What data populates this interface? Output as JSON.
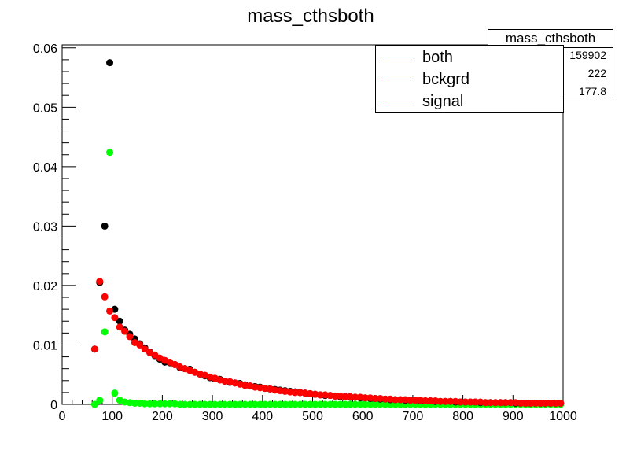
{
  "chart_data": {
    "type": "scatter",
    "title": "mass_cthsboth",
    "xlabel": "",
    "ylabel": "",
    "xlim": [
      0,
      1000
    ],
    "ylim": [
      0,
      0.0605
    ],
    "x_ticks": [
      "0",
      "100",
      "200",
      "300",
      "400",
      "500",
      "600",
      "700",
      "800",
      "900",
      "1000"
    ],
    "y_ticks": [
      "0",
      "0.01",
      "0.02",
      "0.03",
      "0.04",
      "0.05",
      "0.06"
    ],
    "legend_position": "top-right",
    "series": [
      {
        "name": "both",
        "color": "#000000",
        "points": [
          [
            65,
            0.0093
          ],
          [
            75,
            0.0205
          ],
          [
            85,
            0.03
          ],
          [
            95,
            0.0575
          ],
          [
            105,
            0.016
          ],
          [
            115,
            0.014
          ],
          [
            125,
            0.0125
          ],
          [
            135,
            0.0118
          ],
          [
            145,
            0.011
          ],
          [
            155,
            0.0102
          ],
          [
            165,
            0.0095
          ],
          [
            175,
            0.0088
          ],
          [
            185,
            0.0082
          ],
          [
            195,
            0.0076
          ],
          [
            205,
            0.0071
          ],
          [
            215,
            0.007
          ],
          [
            225,
            0.0067
          ],
          [
            235,
            0.0062
          ],
          [
            245,
            0.006
          ],
          [
            255,
            0.0059
          ],
          [
            265,
            0.0054
          ],
          [
            275,
            0.0051
          ],
          [
            285,
            0.0048
          ],
          [
            295,
            0.0045
          ],
          [
            305,
            0.0043
          ],
          [
            315,
            0.0042
          ],
          [
            325,
            0.0039
          ],
          [
            335,
            0.0037
          ],
          [
            345,
            0.0036
          ],
          [
            355,
            0.0035
          ],
          [
            365,
            0.0033
          ],
          [
            375,
            0.0031
          ],
          [
            385,
            0.003
          ],
          [
            395,
            0.0029
          ],
          [
            405,
            0.0027
          ],
          [
            415,
            0.0026
          ],
          [
            425,
            0.0025
          ],
          [
            435,
            0.0024
          ],
          [
            445,
            0.0023
          ],
          [
            455,
            0.0022
          ],
          [
            465,
            0.0021
          ],
          [
            475,
            0.002
          ],
          [
            485,
            0.0019
          ],
          [
            495,
            0.0018
          ],
          [
            505,
            0.0017
          ],
          [
            515,
            0.0016
          ],
          [
            525,
            0.0015
          ],
          [
            535,
            0.0015
          ],
          [
            545,
            0.0014
          ],
          [
            555,
            0.0013
          ],
          [
            565,
            0.0013
          ],
          [
            575,
            0.0012
          ],
          [
            585,
            0.0012
          ],
          [
            595,
            0.0011
          ],
          [
            605,
            0.0011
          ],
          [
            615,
            0.001
          ],
          [
            625,
            0.001
          ],
          [
            635,
            0.0009
          ],
          [
            645,
            0.0009
          ],
          [
            655,
            0.0008
          ],
          [
            665,
            0.0008
          ],
          [
            675,
            0.0008
          ],
          [
            685,
            0.0007
          ],
          [
            695,
            0.0007
          ],
          [
            705,
            0.0007
          ],
          [
            715,
            0.0006
          ],
          [
            725,
            0.0006
          ],
          [
            735,
            0.0006
          ],
          [
            745,
            0.0005
          ],
          [
            755,
            0.0005
          ],
          [
            765,
            0.0005
          ],
          [
            775,
            0.0005
          ],
          [
            785,
            0.0004
          ],
          [
            795,
            0.0004
          ],
          [
            805,
            0.0004
          ],
          [
            815,
            0.0004
          ],
          [
            825,
            0.0004
          ],
          [
            835,
            0.0003
          ],
          [
            845,
            0.0003
          ],
          [
            855,
            0.0003
          ],
          [
            865,
            0.0003
          ],
          [
            875,
            0.0003
          ],
          [
            885,
            0.0003
          ],
          [
            895,
            0.0003
          ],
          [
            905,
            0.0002
          ],
          [
            915,
            0.0002
          ],
          [
            925,
            0.0002
          ],
          [
            935,
            0.0002
          ],
          [
            945,
            0.0002
          ],
          [
            955,
            0.0002
          ],
          [
            965,
            0.0002
          ],
          [
            975,
            0.0002
          ],
          [
            985,
            0.0002
          ],
          [
            995,
            0.0002
          ]
        ]
      },
      {
        "name": "bckgrd",
        "color": "#ff0000",
        "points": [
          [
            65,
            0.0093
          ],
          [
            75,
            0.0207
          ],
          [
            85,
            0.0181
          ],
          [
            95,
            0.0157
          ],
          [
            105,
            0.0146
          ],
          [
            115,
            0.013
          ],
          [
            125,
            0.0123
          ],
          [
            135,
            0.0114
          ],
          [
            145,
            0.0104
          ],
          [
            155,
            0.01
          ],
          [
            165,
            0.0093
          ],
          [
            175,
            0.0087
          ],
          [
            185,
            0.0083
          ],
          [
            195,
            0.0078
          ],
          [
            205,
            0.0074
          ],
          [
            215,
            0.0071
          ],
          [
            225,
            0.0067
          ],
          [
            235,
            0.0063
          ],
          [
            245,
            0.006
          ],
          [
            255,
            0.0057
          ],
          [
            265,
            0.0054
          ],
          [
            275,
            0.0051
          ],
          [
            285,
            0.0049
          ],
          [
            295,
            0.0046
          ],
          [
            305,
            0.0044
          ],
          [
            315,
            0.0041
          ],
          [
            325,
            0.0039
          ],
          [
            335,
            0.0038
          ],
          [
            345,
            0.0036
          ],
          [
            355,
            0.0034
          ],
          [
            365,
            0.0032
          ],
          [
            375,
            0.0031
          ],
          [
            385,
            0.0029
          ],
          [
            395,
            0.0028
          ],
          [
            405,
            0.0027
          ],
          [
            415,
            0.0026
          ],
          [
            425,
            0.0024
          ],
          [
            435,
            0.0023
          ],
          [
            445,
            0.0022
          ],
          [
            455,
            0.0021
          ],
          [
            465,
            0.002
          ],
          [
            475,
            0.002
          ],
          [
            485,
            0.0019
          ],
          [
            495,
            0.0018
          ],
          [
            505,
            0.0017
          ],
          [
            515,
            0.0016
          ],
          [
            525,
            0.0016
          ],
          [
            535,
            0.0015
          ],
          [
            545,
            0.0014
          ],
          [
            555,
            0.0014
          ],
          [
            565,
            0.0013
          ],
          [
            575,
            0.0013
          ],
          [
            585,
            0.0012
          ],
          [
            595,
            0.0012
          ],
          [
            605,
            0.0011
          ],
          [
            615,
            0.0011
          ],
          [
            625,
            0.001
          ],
          [
            635,
            0.001
          ],
          [
            645,
            0.0009
          ],
          [
            655,
            0.0009
          ],
          [
            665,
            0.0008
          ],
          [
            675,
            0.0008
          ],
          [
            685,
            0.0008
          ],
          [
            695,
            0.0007
          ],
          [
            705,
            0.0007
          ],
          [
            715,
            0.0007
          ],
          [
            725,
            0.0006
          ],
          [
            735,
            0.0006
          ],
          [
            745,
            0.0006
          ],
          [
            755,
            0.0005
          ],
          [
            765,
            0.0005
          ],
          [
            775,
            0.0005
          ],
          [
            785,
            0.0005
          ],
          [
            795,
            0.0004
          ],
          [
            805,
            0.0004
          ],
          [
            815,
            0.0004
          ],
          [
            825,
            0.0004
          ],
          [
            835,
            0.0004
          ],
          [
            845,
            0.0003
          ],
          [
            855,
            0.0003
          ],
          [
            865,
            0.0003
          ],
          [
            875,
            0.0003
          ],
          [
            885,
            0.0003
          ],
          [
            895,
            0.0003
          ],
          [
            905,
            0.0003
          ],
          [
            915,
            0.0002
          ],
          [
            925,
            0.0002
          ],
          [
            935,
            0.0002
          ],
          [
            945,
            0.0002
          ],
          [
            955,
            0.0002
          ],
          [
            965,
            0.0002
          ],
          [
            975,
            0.0002
          ],
          [
            985,
            0.0002
          ],
          [
            995,
            0.0002
          ]
        ]
      },
      {
        "name": "signal",
        "color": "#00ff00",
        "points": [
          [
            65,
            0.0
          ],
          [
            75,
            0.0007
          ],
          [
            85,
            0.0122
          ],
          [
            95,
            0.0424
          ],
          [
            105,
            0.0019
          ],
          [
            115,
            0.0007
          ],
          [
            125,
            0.0004
          ],
          [
            135,
            0.0003
          ],
          [
            145,
            0.0002
          ],
          [
            155,
            0.0002
          ],
          [
            165,
            0.0001
          ],
          [
            175,
            0.0001
          ],
          [
            185,
            0.0001
          ],
          [
            195,
            0.0001
          ],
          [
            205,
            0.0001
          ],
          [
            215,
            0.0001
          ],
          [
            225,
            0.0001
          ],
          [
            235,
            0.0
          ],
          [
            245,
            0.0
          ],
          [
            255,
            0.0
          ],
          [
            265,
            0.0
          ],
          [
            275,
            0.0
          ],
          [
            285,
            0.0
          ],
          [
            295,
            0.0
          ],
          [
            305,
            0.0
          ],
          [
            315,
            0.0
          ],
          [
            325,
            0.0
          ],
          [
            335,
            0.0
          ],
          [
            345,
            0.0
          ],
          [
            355,
            0.0
          ],
          [
            365,
            0.0
          ],
          [
            375,
            0.0
          ],
          [
            385,
            0.0
          ],
          [
            395,
            0.0
          ],
          [
            405,
            0.0
          ],
          [
            415,
            0.0
          ],
          [
            425,
            0.0
          ],
          [
            435,
            0.0
          ],
          [
            445,
            0.0
          ],
          [
            455,
            0.0
          ],
          [
            465,
            0.0
          ],
          [
            475,
            0.0
          ],
          [
            485,
            0.0
          ],
          [
            495,
            0.0
          ],
          [
            505,
            0.0
          ],
          [
            515,
            0.0
          ],
          [
            525,
            0.0
          ],
          [
            535,
            0.0
          ],
          [
            545,
            0.0
          ],
          [
            555,
            0.0
          ],
          [
            565,
            0.0
          ],
          [
            575,
            0.0
          ],
          [
            585,
            0.0
          ],
          [
            595,
            0.0
          ],
          [
            605,
            0.0
          ],
          [
            615,
            0.0
          ],
          [
            625,
            0.0
          ],
          [
            635,
            0.0
          ],
          [
            645,
            0.0
          ],
          [
            655,
            0.0
          ],
          [
            665,
            0.0
          ],
          [
            675,
            0.0
          ],
          [
            685,
            0.0
          ],
          [
            695,
            0.0
          ],
          [
            705,
            0.0
          ],
          [
            715,
            0.0
          ],
          [
            725,
            0.0
          ],
          [
            735,
            0.0
          ],
          [
            745,
            0.0
          ],
          [
            755,
            0.0
          ],
          [
            765,
            0.0
          ],
          [
            775,
            0.0
          ],
          [
            785,
            0.0
          ],
          [
            795,
            0.0
          ],
          [
            805,
            0.0
          ],
          [
            815,
            0.0
          ],
          [
            825,
            0.0
          ],
          [
            835,
            0.0
          ],
          [
            845,
            0.0
          ],
          [
            855,
            0.0
          ],
          [
            865,
            0.0
          ],
          [
            875,
            0.0
          ],
          [
            885,
            0.0
          ],
          [
            895,
            0.0
          ],
          [
            905,
            0.0
          ],
          [
            915,
            0.0
          ],
          [
            925,
            0.0
          ],
          [
            935,
            0.0
          ],
          [
            945,
            0.0
          ],
          [
            955,
            0.0
          ],
          [
            965,
            0.0
          ],
          [
            975,
            0.0
          ],
          [
            985,
            0.0
          ],
          [
            995,
            0.0
          ]
        ]
      }
    ]
  },
  "stats": {
    "title": "mass_cthsboth",
    "rows": [
      {
        "value": "159902"
      },
      {
        "value": "222"
      },
      {
        "value": "177.8"
      }
    ]
  }
}
